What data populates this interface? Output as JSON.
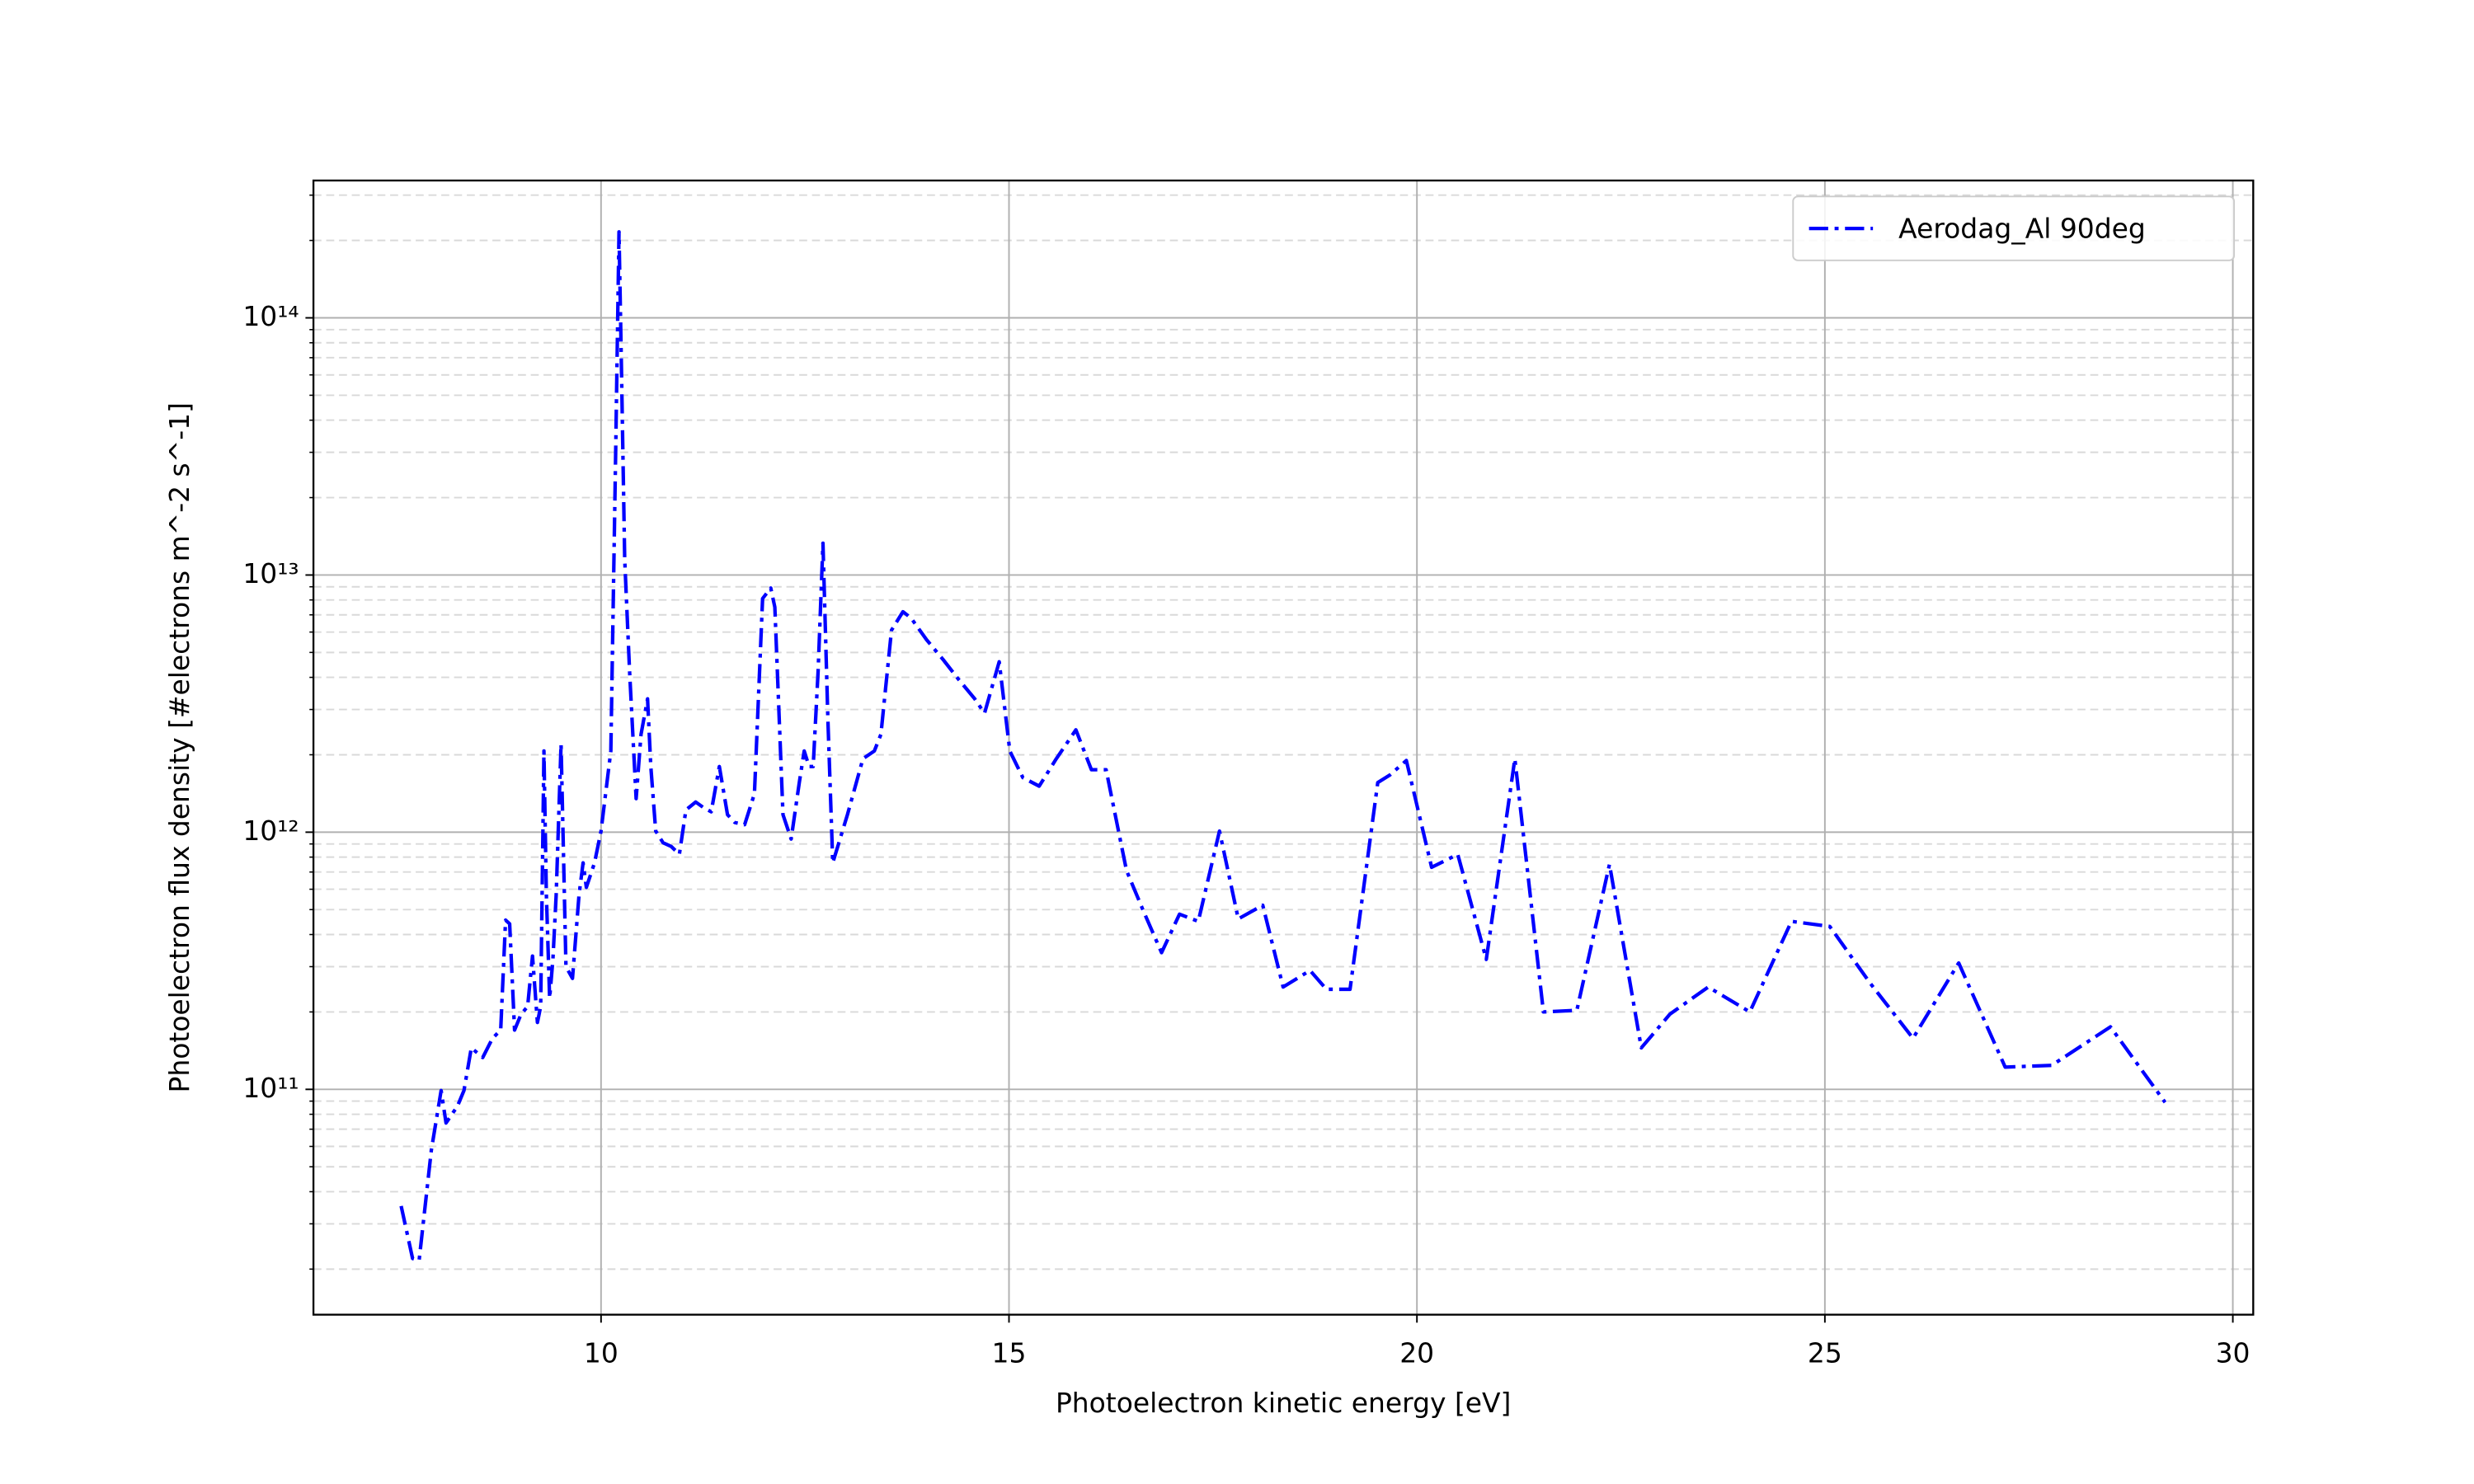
{
  "chart_data": {
    "type": "line",
    "xlabel": "Photoelectron kinetic energy [eV]",
    "ylabel": "Photoelectron flux density [#electrons m^-2 s^-1]",
    "x": [
      7.55,
      7.69,
      7.77,
      7.92,
      8.04,
      8.1,
      8.24,
      8.32,
      8.41,
      8.55,
      8.67,
      8.77,
      8.83,
      8.88,
      8.94,
      9.02,
      9.1,
      9.16,
      9.22,
      9.26,
      9.3,
      9.33,
      9.37,
      9.41,
      9.45,
      9.51,
      9.57,
      9.65,
      9.73,
      9.78,
      9.82,
      9.92,
      10.0,
      10.12,
      10.18,
      10.22,
      10.25,
      10.29,
      10.35,
      10.43,
      10.49,
      10.57,
      10.61,
      10.67,
      10.76,
      10.86,
      10.96,
      11.04,
      11.16,
      11.25,
      11.35,
      11.45,
      11.55,
      11.64,
      11.76,
      11.88,
      11.98,
      12.08,
      12.13,
      12.23,
      12.33,
      12.43,
      12.49,
      12.55,
      12.6,
      12.66,
      12.72,
      12.78,
      12.84,
      13.02,
      13.21,
      13.35,
      13.43,
      13.56,
      13.7,
      13.8,
      13.99,
      14.19,
      14.39,
      14.58,
      14.7,
      14.88,
      15.01,
      15.17,
      15.37,
      15.58,
      15.82,
      16.01,
      16.19,
      16.44,
      16.64,
      16.87,
      17.09,
      17.32,
      17.58,
      17.81,
      18.11,
      18.36,
      18.69,
      18.89,
      19.18,
      19.52,
      19.67,
      19.87,
      20.18,
      20.5,
      20.85,
      21.2,
      21.55,
      21.96,
      22.36,
      22.75,
      23.1,
      23.57,
      24.08,
      24.59,
      25.06,
      25.55,
      26.08,
      26.64,
      27.21,
      27.78,
      28.5,
      29.17
    ],
    "series": [
      {
        "name": "Aerodag_Al 90deg",
        "color": "#0000ff",
        "values": [
          35200000000.0,
          22000000000.0,
          21600000000.0,
          58000000000.0,
          99000000000.0,
          74000000000.0,
          86000000000.0,
          99000000000.0,
          145000000000.0,
          133000000000.0,
          158000000000.0,
          170000000000.0,
          455000000000.0,
          440000000000.0,
          170000000000.0,
          196000000000.0,
          210000000000.0,
          330000000000.0,
          182000000000.0,
          210000000000.0,
          2070000000000.0,
          570000000000.0,
          226000000000.0,
          320000000000.0,
          570000000000.0,
          2200000000000.0,
          300000000000.0,
          270000000000.0,
          570000000000.0,
          760000000000.0,
          610000000000.0,
          760000000000.0,
          1010000000000.0,
          2070000000000.0,
          31000000000000.0,
          216000000000000.0,
          64000000000000.0,
          11500000000000.0,
          4200000000000.0,
          1350000000000.0,
          2400000000000.0,
          3300000000000.0,
          1800000000000.0,
          1010000000000.0,
          910000000000.0,
          880000000000.0,
          820000000000.0,
          1220000000000.0,
          1310000000000.0,
          1250000000000.0,
          1200000000000.0,
          1800000000000.0,
          1170000000000.0,
          1090000000000.0,
          1070000000000.0,
          1410000000000.0,
          8100000000000.0,
          8900000000000.0,
          7500000000000.0,
          1170000000000.0,
          940000000000.0,
          1560000000000.0,
          2070000000000.0,
          1800000000000.0,
          1800000000000.0,
          4200000000000.0,
          13300000000000.0,
          2760000000000.0,
          760000000000.0,
          1170000000000.0,
          1930000000000.0,
          2070000000000.0,
          2400000000000.0,
          6100000000000.0,
          7200000000000.0,
          6800000000000.0,
          5600000000000.0,
          4700000000000.0,
          3900000000000.0,
          3300000000000.0,
          2900000000000.0,
          4600000000000.0,
          2070000000000.0,
          1630000000000.0,
          1510000000000.0,
          1930000000000.0,
          2500000000000.0,
          1750000000000.0,
          1750000000000.0,
          710000000000.0,
          500000000000.0,
          340000000000.0,
          480000000000.0,
          450000000000.0,
          1010000000000.0,
          460000000000.0,
          520000000000.0,
          250000000000.0,
          290000000000.0,
          245000000000.0,
          245000000000.0,
          1560000000000.0,
          1670000000000.0,
          1900000000000.0,
          730000000000.0,
          820000000000.0,
          320000000000.0,
          1930000000000.0,
          200000000000.0,
          203000000000.0,
          750000000000.0,
          145000000000.0,
          196000000000.0,
          250000000000.0,
          200000000000.0,
          450000000000.0,
          430000000000.0,
          260000000000.0,
          158000000000.0,
          310000000000.0,
          122000000000.0,
          124000000000.0,
          175000000000.0,
          89000000000.0
        ]
      }
    ],
    "xlim": [
      6.475,
      30.25
    ],
    "xticks": [
      10,
      15,
      20,
      25,
      30
    ],
    "ylim": [
      13300000000.0,
      342000000000000.0
    ],
    "yscale": "log",
    "yticks": [
      {
        "value": 100000000000.0,
        "label": "10¹¹"
      },
      {
        "value": 1000000000000.0,
        "label": "10¹²"
      },
      {
        "value": 10000000000000.0,
        "label": "10¹³"
      },
      {
        "value": 100000000000000.0,
        "label": "10¹⁴"
      }
    ],
    "minor_yticks": [
      20000000000.0,
      30000000000.0,
      40000000000.0,
      50000000000.0,
      60000000000.0,
      70000000000.0,
      80000000000.0,
      90000000000.0,
      200000000000.0,
      300000000000.0,
      400000000000.0,
      500000000000.0,
      600000000000.0,
      700000000000.0,
      800000000000.0,
      900000000000.0,
      2000000000000.0,
      3000000000000.0,
      4000000000000.0,
      5000000000000.0,
      6000000000000.0,
      7000000000000.0,
      8000000000000.0,
      9000000000000.0,
      20000000000000.0,
      30000000000000.0,
      40000000000000.0,
      50000000000000.0,
      60000000000000.0,
      70000000000000.0,
      80000000000000.0,
      90000000000000.0,
      200000000000000.0,
      300000000000000.0
    ],
    "grid": true,
    "minor_grid": true,
    "legend": "upper right"
  }
}
